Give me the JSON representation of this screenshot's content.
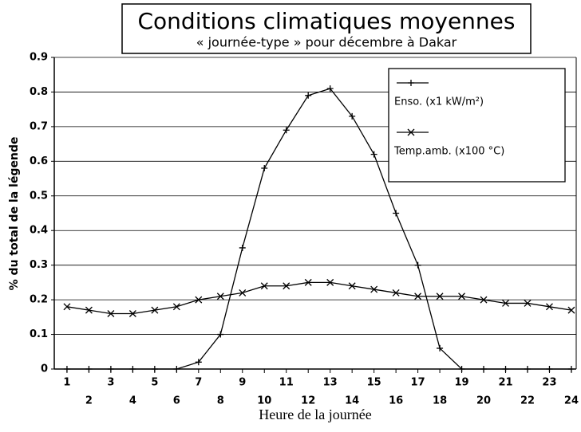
{
  "chart_data": {
    "type": "line",
    "title": "Conditions climatiques moyennes",
    "subtitle": "« journée-type » pour décembre à Dakar",
    "x_label": "Heure de la journée",
    "y_label": "% du total de la légende",
    "x": [
      1,
      2,
      3,
      4,
      5,
      6,
      7,
      8,
      9,
      10,
      11,
      12,
      13,
      14,
      15,
      16,
      17,
      18,
      19,
      20,
      21,
      22,
      23,
      24
    ],
    "xlim": [
      0.42,
      24.22
    ],
    "xticks": [
      1,
      2,
      3,
      4,
      5,
      6,
      7,
      8,
      9,
      10,
      11,
      12,
      13,
      14,
      15,
      16,
      17,
      18,
      19,
      20,
      21,
      22,
      23,
      24
    ],
    "ylim": [
      0,
      0.9
    ],
    "yticks": [
      0,
      0.1,
      0.2,
      0.3,
      0.4,
      0.5,
      0.6,
      0.7,
      0.8,
      0.9
    ],
    "grid": true,
    "legend": "upper right",
    "series": [
      {
        "name": "Enso. (x1 kW/m²)",
        "color": "#000000",
        "marker": "plus",
        "values": [
          0,
          0,
          0,
          0,
          0,
          0,
          0.02,
          0.1,
          0.35,
          0.58,
          0.69,
          0.79,
          0.81,
          0.73,
          0.62,
          0.45,
          0.3,
          0.06,
          0,
          0,
          0,
          0,
          0,
          0
        ]
      },
      {
        "name": "Temp.amb. (x100 °C)",
        "color": "#000000",
        "marker": "x",
        "values": [
          0.18,
          0.17,
          0.16,
          0.16,
          0.17,
          0.18,
          0.2,
          0.21,
          0.22,
          0.24,
          0.24,
          0.25,
          0.25,
          0.24,
          0.23,
          0.22,
          0.21,
          0.21,
          0.21,
          0.2,
          0.19,
          0.19,
          0.18,
          0.17
        ]
      }
    ]
  }
}
